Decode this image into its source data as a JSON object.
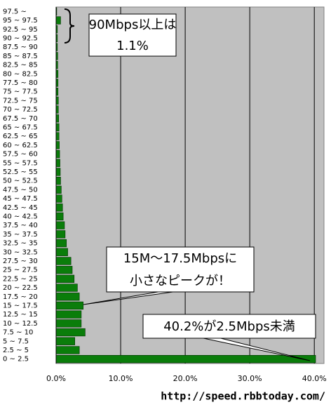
{
  "chart_data": {
    "type": "hbar",
    "categories": [
      "0 ~ 2.5",
      "2.5 ~ 5",
      "5 ~ 7.5",
      "7.5 ~ 10",
      "10 ~ 12.5",
      "12.5 ~ 15",
      "15 ~ 17.5",
      "17.5 ~ 20",
      "20 ~ 22.5",
      "22.5 ~ 25",
      "25 ~ 27.5",
      "27.5 ~ 30",
      "30 ~ 32.5",
      "32.5 ~ 35",
      "35 ~ 37.5",
      "37.5 ~ 40",
      "40 ~ 42.5",
      "42.5 ~ 45",
      "45 ~ 47.5",
      "47.5 ~ 50",
      "50 ~ 52.5",
      "52.5 ~ 55",
      "55 ~ 57.5",
      "57.5 ~ 60",
      "60 ~ 62.5",
      "62.5 ~ 65",
      "65 ~ 67.5",
      "67.5 ~ 70",
      "70 ~ 72.5",
      "72.5 ~ 75",
      "75 ~ 77.5",
      "77.5 ~ 80",
      "80 ~ 82.5",
      "82.5 ~ 85",
      "85 ~ 87.5",
      "87.5 ~ 90",
      "90 ~ 92.5",
      "92.5 ~ 95",
      "95 ~ 97.5",
      "97.5 ~"
    ],
    "values": [
      40.2,
      3.6,
      2.9,
      4.5,
      3.9,
      3.9,
      4.2,
      3.6,
      3.3,
      2.8,
      2.5,
      2.3,
      1.8,
      1.6,
      1.4,
      1.3,
      1.1,
      1.0,
      0.9,
      0.8,
      0.7,
      0.65,
      0.6,
      0.55,
      0.5,
      0.45,
      0.45,
      0.4,
      0.35,
      0.35,
      0.3,
      0.3,
      0.3,
      0.25,
      0.25,
      0.2,
      0.2,
      0.2,
      0.7,
      0.1
    ],
    "color": "#0a7d0a",
    "xlim": [
      0,
      41.5
    ],
    "xticks": [
      {
        "value": 0,
        "label": "0.0%"
      },
      {
        "value": 10,
        "label": "10.0%"
      },
      {
        "value": 20,
        "label": "20.0%"
      },
      {
        "value": 30,
        "label": "30.0%"
      },
      {
        "value": 40,
        "label": "40.0%"
      }
    ],
    "grid": true,
    "annotations": [
      {
        "lines": [
          "90Mbps以上は",
          "1.1%"
        ]
      },
      {
        "lines": [
          "15M～17.5Mbpsに",
          "小さなピークが！"
        ]
      },
      {
        "lines": [
          "40.2%が2.5Mbps未満"
        ]
      }
    ],
    "source": "http://speed.rbbtoday.com/"
  }
}
